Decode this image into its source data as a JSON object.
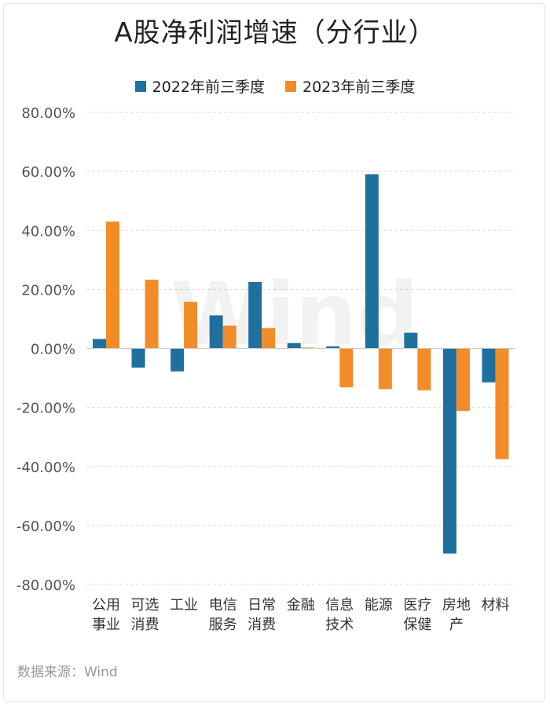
{
  "chart_data": {
    "type": "bar",
    "title": "A股净利润增速（分行业）",
    "categories": [
      [
        "公用",
        "事业"
      ],
      [
        "可选",
        "消费"
      ],
      [
        "工业"
      ],
      [
        "电信",
        "服务"
      ],
      [
        "日常",
        "消费"
      ],
      [
        "金融"
      ],
      [
        "信息",
        "技术"
      ],
      [
        "能源"
      ],
      [
        "医疗",
        "保健"
      ],
      [
        "房地",
        "产"
      ],
      [
        "材料"
      ]
    ],
    "series": [
      {
        "name": "2022年前三季度",
        "color": "#1f6f9f",
        "values": [
          3.2,
          -6.5,
          -7.8,
          11.2,
          22.5,
          1.8,
          0.7,
          59.0,
          5.3,
          -69.5,
          -11.5
        ]
      },
      {
        "name": "2023年前三季度",
        "color": "#f28c28",
        "values": [
          43.0,
          23.3,
          15.8,
          7.7,
          6.9,
          0.3,
          -13.2,
          -13.8,
          -14.2,
          -21.2,
          -37.5
        ]
      }
    ],
    "ylim": [
      -80,
      80
    ],
    "yticks": [
      80,
      60,
      40,
      20,
      0,
      -20,
      -40,
      -60,
      -80
    ],
    "ytick_format": "0.00%",
    "grid": true,
    "legend_position": "top-center"
  },
  "source_text": "数据来源：Wind",
  "watermark": "Wind"
}
